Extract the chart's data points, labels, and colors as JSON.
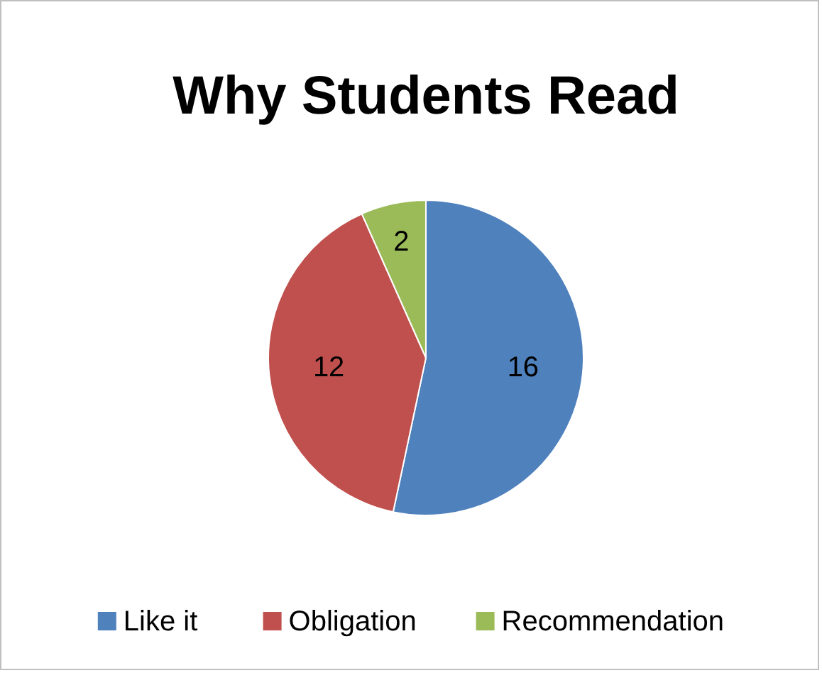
{
  "chart_data": {
    "type": "pie",
    "title": "Why Students Read",
    "categories": [
      "Like it",
      "Obligation",
      "Recommendation"
    ],
    "values": [
      16,
      12,
      2
    ],
    "colors": [
      "#4f81bd",
      "#c0504d",
      "#9bbb59"
    ],
    "data_labels": true,
    "legend": "bottom"
  }
}
